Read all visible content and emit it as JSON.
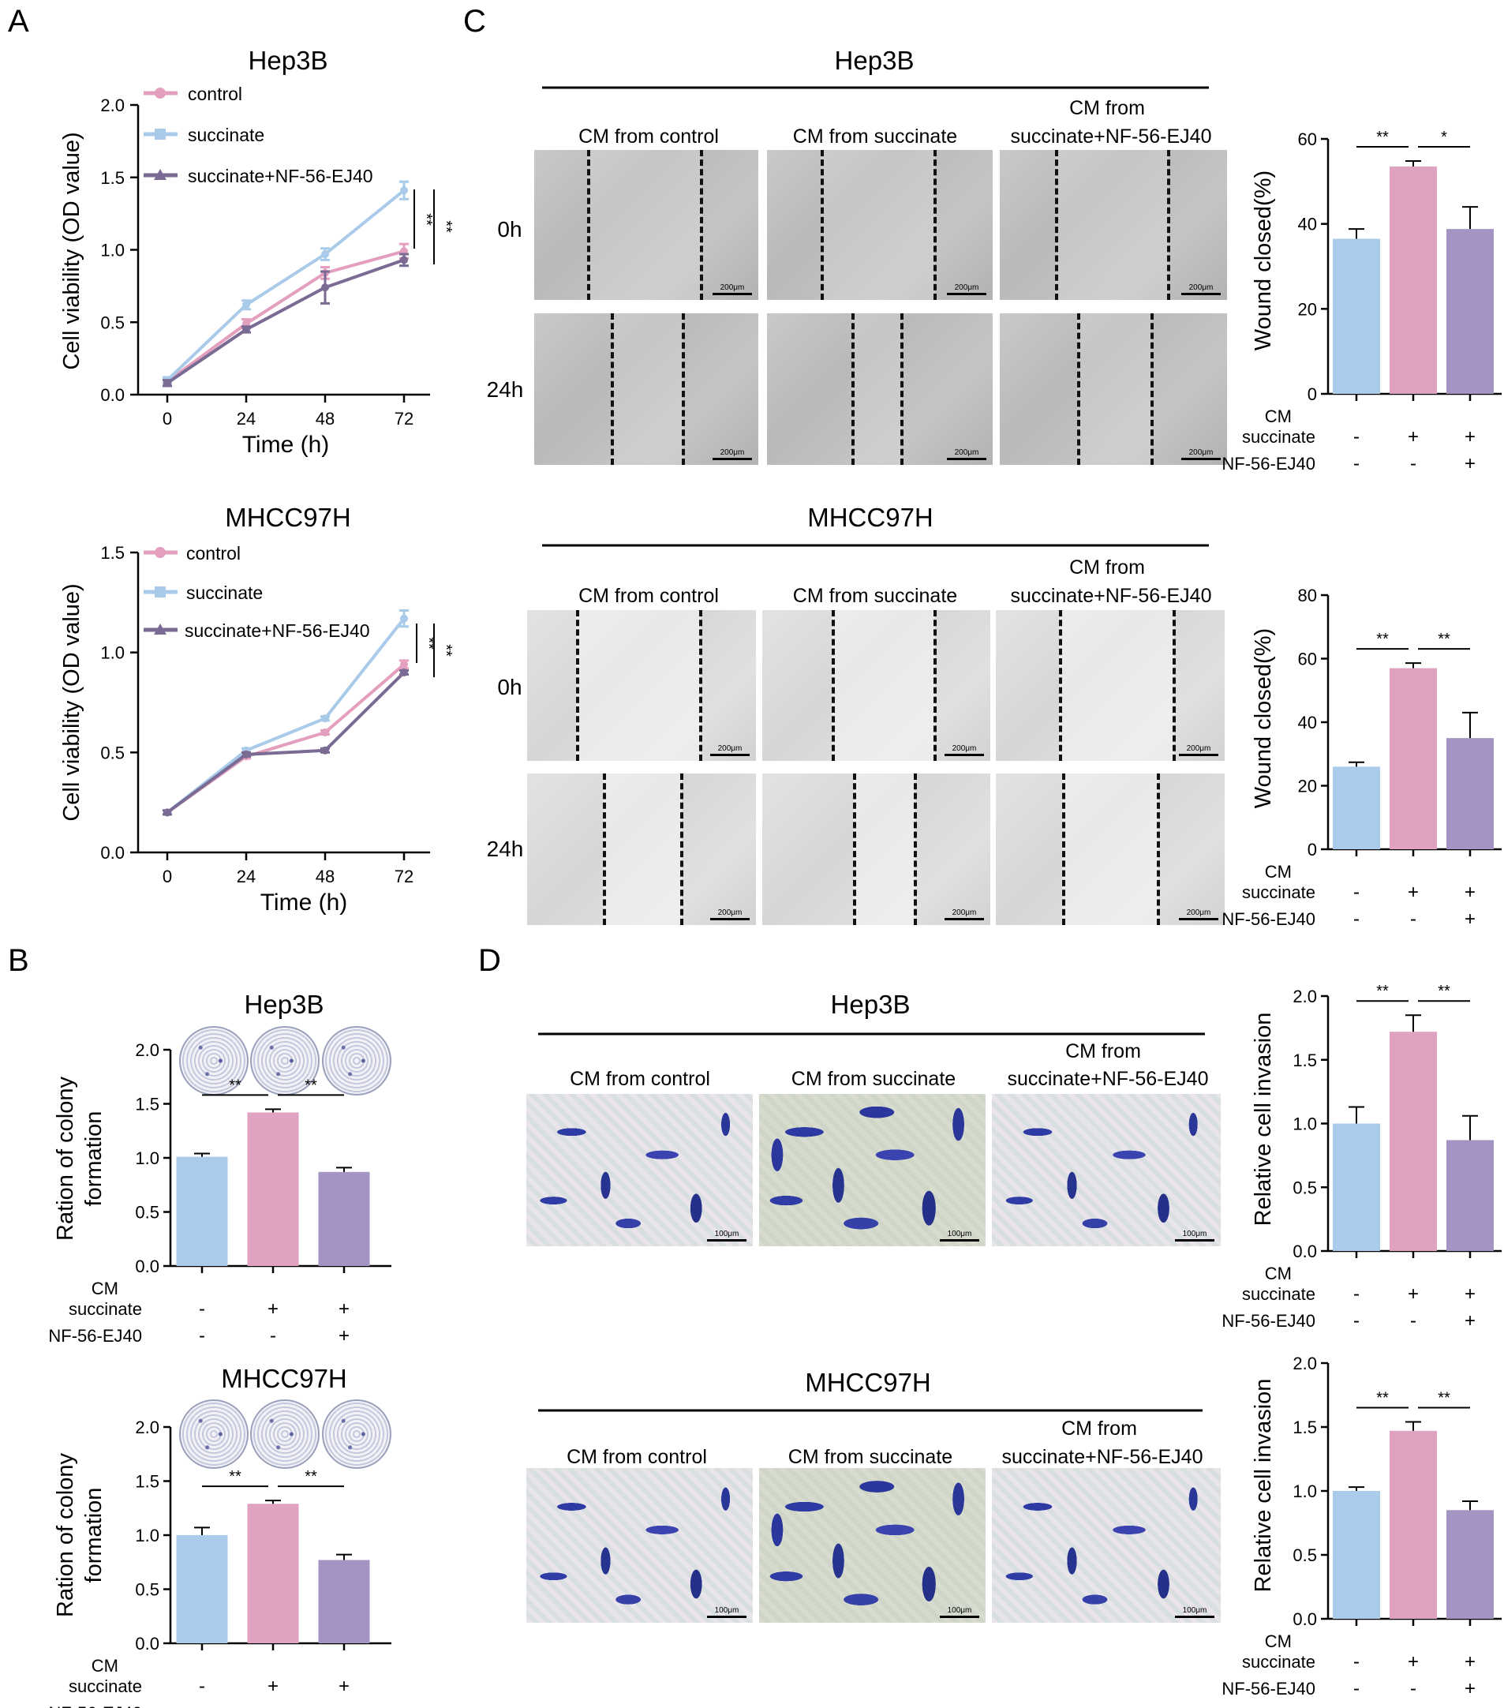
{
  "panel_letters": {
    "A": "A",
    "B": "B",
    "C": "C",
    "D": "D"
  },
  "colors": {
    "control": "#e39fbd",
    "succinate": "#a9cbe9",
    "nf": "#7a6b94",
    "bar_control": "#abcbea",
    "bar_succinate": "#e0a2c1",
    "bar_nf": "#a394c4"
  },
  "panel_A": {
    "hep3b": {
      "title": "Hep3B",
      "ylabel": "Cell viability (OD value)",
      "xlabel": "Time (h)",
      "legend": [
        "control",
        "succinate",
        "succinate+NF-56-EJ40"
      ],
      "sig": [
        "**",
        "**"
      ]
    },
    "mhcc97h": {
      "title": "MHCC97H",
      "ylabel": "Cell viability (OD value)",
      "xlabel": "Time (h)",
      "legend": [
        "control",
        "succinate",
        "succinate+NF-56-EJ40"
      ],
      "sig": [
        "**",
        "**"
      ]
    }
  },
  "panel_B": {
    "hep3b": {
      "title": "Hep3B",
      "ylabel_1": "Ration of colony",
      "ylabel_2": "formation",
      "sig": [
        "**",
        "**"
      ]
    },
    "mhcc97h": {
      "title": "MHCC97H",
      "ylabel_1": "Ration of colony",
      "ylabel_2": "formation",
      "sig": [
        "**",
        "**"
      ]
    }
  },
  "panel_C": {
    "hep3b": {
      "title": "Hep3B",
      "col_labels": [
        "CM from control",
        "CM from succinate",
        "CM from",
        "succinate+NF-56-EJ40"
      ],
      "row_labels": [
        "0h",
        "24h"
      ],
      "scale": "200μm",
      "ylabel": "Wound closed(%)",
      "sig": [
        "**",
        "*"
      ]
    },
    "mhcc97h": {
      "title": "MHCC97H",
      "col_labels": [
        "CM from control",
        "CM from succinate",
        "CM from",
        "succinate+NF-56-EJ40"
      ],
      "row_labels": [
        "0h",
        "24h"
      ],
      "scale": "200μm",
      "ylabel": "Wound closed(%)",
      "sig": [
        "**",
        "**"
      ]
    }
  },
  "panel_D": {
    "hep3b": {
      "title": "Hep3B",
      "col_labels": [
        "CM from control",
        "CM from succinate",
        "CM from",
        "succinate+NF-56-EJ40"
      ],
      "scale": "100μm",
      "ylabel": "Relative cell invasion",
      "sig": [
        "**",
        "**"
      ]
    },
    "mhcc97h": {
      "title": "MHCC97H",
      "col_labels": [
        "CM from control",
        "CM from succinate",
        "CM from",
        "succinate+NF-56-EJ40"
      ],
      "scale": "100μm",
      "ylabel": "Relative cell invasion",
      "sig": [
        "**",
        "**"
      ]
    }
  },
  "treatment_table": {
    "row_labels": [
      "CM",
      "succinate",
      "NF-56-EJ40"
    ],
    "succinate": [
      "-",
      "+",
      "+"
    ],
    "nf": [
      "-",
      "-",
      "+"
    ]
  },
  "chart_data": [
    {
      "id": "A_hep3b",
      "type": "line",
      "title": "Hep3B",
      "xlabel": "Time (h)",
      "ylabel": "Cell viability (OD value)",
      "x": [
        0,
        24,
        48,
        72
      ],
      "xticks": [
        "0",
        "24",
        "48",
        "72"
      ],
      "ylim": [
        0,
        2.0
      ],
      "yticks": [
        "0.0",
        "0.5",
        "1.0",
        "1.5",
        "2.0"
      ],
      "series": [
        {
          "name": "control",
          "values": [
            0.09,
            0.49,
            0.84,
            0.99
          ],
          "err": [
            0.02,
            0.03,
            0.04,
            0.05
          ]
        },
        {
          "name": "succinate",
          "values": [
            0.1,
            0.62,
            0.97,
            1.41
          ],
          "err": [
            0.02,
            0.03,
            0.04,
            0.06
          ]
        },
        {
          "name": "succinate+NF-56-EJ40",
          "values": [
            0.08,
            0.45,
            0.74,
            0.93
          ],
          "err": [
            0.02,
            0.02,
            0.11,
            0.04
          ]
        }
      ]
    },
    {
      "id": "A_mhcc97h",
      "type": "line",
      "title": "MHCC97H",
      "xlabel": "Time (h)",
      "ylabel": "Cell viability (OD value)",
      "x": [
        0,
        24,
        48,
        72
      ],
      "xticks": [
        "0",
        "24",
        "48",
        "72"
      ],
      "ylim": [
        0,
        1.5
      ],
      "yticks": [
        "0.0",
        "0.5",
        "1.0",
        "1.5"
      ],
      "series": [
        {
          "name": "control",
          "values": [
            0.2,
            0.48,
            0.6,
            0.94
          ],
          "err": [
            0.01,
            0.01,
            0.01,
            0.02
          ]
        },
        {
          "name": "succinate",
          "values": [
            0.2,
            0.51,
            0.67,
            1.17
          ],
          "err": [
            0.01,
            0.01,
            0.01,
            0.04
          ]
        },
        {
          "name": "succinate+NF-56-EJ40",
          "values": [
            0.2,
            0.49,
            0.51,
            0.9
          ],
          "err": [
            0.01,
            0.01,
            0.01,
            0.01
          ]
        }
      ]
    },
    {
      "id": "B_hep3b",
      "type": "bar",
      "ylabel": "Ration of colony formation",
      "ylim": [
        0,
        2.0
      ],
      "yticks": [
        "0.0",
        "0.5",
        "1.0",
        "1.5",
        "2.0"
      ],
      "values": [
        1.01,
        1.42,
        0.87
      ],
      "err": [
        0.03,
        0.03,
        0.04
      ]
    },
    {
      "id": "B_mhcc97h",
      "type": "bar",
      "ylabel": "Ration of colony formation",
      "ylim": [
        0,
        2.0
      ],
      "yticks": [
        "0.0",
        "0.5",
        "1.0",
        "1.5",
        "2.0"
      ],
      "values": [
        1.0,
        1.29,
        0.77
      ],
      "err": [
        0.07,
        0.03,
        0.05
      ]
    },
    {
      "id": "C_hep3b",
      "type": "bar",
      "ylabel": "Wound closed(%)",
      "ylim": [
        0,
        60
      ],
      "yticks": [
        "0",
        "20",
        "40",
        "60"
      ],
      "values": [
        36.5,
        53.5,
        38.8
      ],
      "err": [
        2.3,
        1.3,
        5.2
      ]
    },
    {
      "id": "C_mhcc97h",
      "type": "bar",
      "ylabel": "Wound closed(%)",
      "ylim": [
        0,
        80
      ],
      "yticks": [
        "0",
        "20",
        "40",
        "60",
        "80"
      ],
      "values": [
        26.0,
        57.0,
        35.0
      ],
      "err": [
        1.4,
        1.6,
        8.0
      ]
    },
    {
      "id": "D_hep3b",
      "type": "bar",
      "ylabel": "Relative cell invasion",
      "ylim": [
        0,
        2.0
      ],
      "yticks": [
        "0.0",
        "0.5",
        "1.0",
        "1.5",
        "2.0"
      ],
      "values": [
        1.0,
        1.72,
        0.87
      ],
      "err": [
        0.13,
        0.13,
        0.19
      ]
    },
    {
      "id": "D_mhcc97h",
      "type": "bar",
      "ylabel": "Relative cell invasion",
      "ylim": [
        0,
        2.0
      ],
      "yticks": [
        "0.0",
        "0.5",
        "1.0",
        "1.5",
        "2.0"
      ],
      "values": [
        1.0,
        1.47,
        0.85
      ],
      "err": [
        0.03,
        0.07,
        0.07
      ]
    }
  ]
}
